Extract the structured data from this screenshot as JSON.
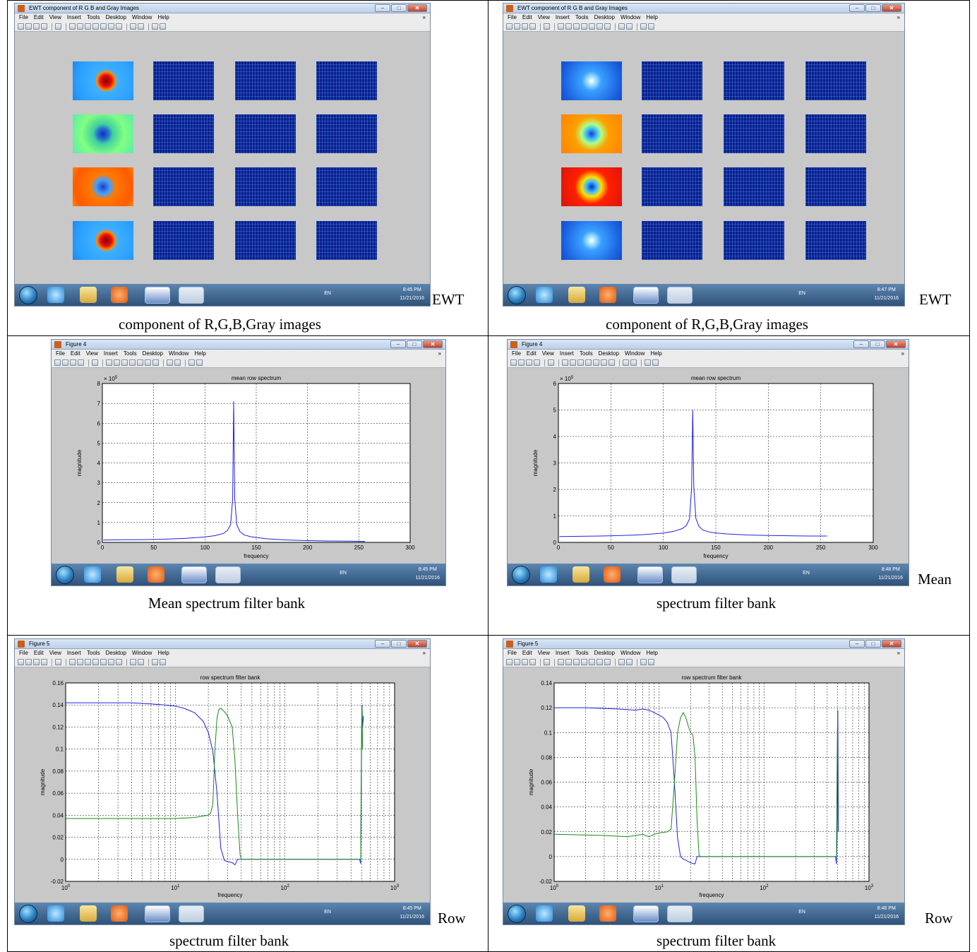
{
  "panels": [
    {
      "window": {
        "title": "EWT component of R G B and Gray Images"
      },
      "taskbar": {
        "time": "8:45 PM",
        "date": "11/21/2016",
        "lang": "EN"
      },
      "side_label": "EWT",
      "caption": "component of R,G,B,Gray images"
    },
    {
      "window": {
        "title": "EWT component of R G B and Gray Images"
      },
      "taskbar": {
        "time": "8:47 PM",
        "date": "11/21/2016",
        "lang": "EN"
      },
      "side_label": "EWT",
      "caption": "component of R,G,B,Gray images"
    },
    {
      "window": {
        "title": "Figure 4"
      },
      "taskbar": {
        "time": "8:45 PM",
        "date": "11/21/2016",
        "lang": "EN"
      },
      "side_label": "",
      "caption": "Mean spectrum filter bank"
    },
    {
      "window": {
        "title": "Figure 4"
      },
      "taskbar": {
        "time": "8:48 PM",
        "date": "11/21/2016",
        "lang": "EN"
      },
      "side_label": "Mean",
      "caption": "spectrum filter bank"
    },
    {
      "window": {
        "title": "Figure 5"
      },
      "taskbar": {
        "time": "8:45 PM",
        "date": "11/21/2016",
        "lang": "EN"
      },
      "side_label": "Row",
      "caption": "spectrum filter bank"
    },
    {
      "window": {
        "title": "Figure 5"
      },
      "taskbar": {
        "time": "8:48 PM",
        "date": "11/21/2016",
        "lang": "EN"
      },
      "side_label": "Row",
      "caption": "spectrum filter bank"
    }
  ],
  "menu": {
    "items": [
      "File",
      "Edit",
      "View",
      "Insert",
      "Tools",
      "Desktop",
      "Window",
      "Help"
    ],
    "overflow": "»"
  },
  "window_buttons": {
    "minimize": "–",
    "maximize": "□",
    "close": "✕"
  },
  "toolbar_icons": [
    "new-file-icon",
    "open-file-icon",
    "save-icon",
    "print-icon",
    "pointer-icon",
    "zoom-in-icon",
    "zoom-out-icon",
    "pan-icon",
    "rotate-icon",
    "data-cursor-icon",
    "brush-icon",
    "link-icon",
    "colorbar-icon",
    "legend-icon",
    "plot-tools-hide-icon",
    "plot-tools-show-icon"
  ],
  "taskbar_apps": [
    "start-orb-icon",
    "internet-explorer-icon",
    "file-explorer-icon",
    "media-player-icon",
    "word-icon",
    "matlab-icon"
  ],
  "colors": {
    "figure_bg": "#c8c8c8",
    "blue_line": "#2020e0",
    "green_line": "#1a8a1a",
    "taskbar": "#3f6790"
  },
  "chart_data": [
    {
      "type": "line",
      "title": "mean row spectrum",
      "xlabel": "frequency",
      "ylabel": "magnitude",
      "xlim": [
        0,
        300
      ],
      "ylim": [
        0,
        8
      ],
      "y_exponent": "× 10^5",
      "xticks": [
        0,
        50,
        100,
        150,
        200,
        250,
        300
      ],
      "yticks": [
        0,
        1,
        2,
        3,
        4,
        5,
        6,
        7,
        8
      ],
      "grid": true,
      "series": [
        {
          "x": [
            1,
            20,
            40,
            60,
            80,
            100,
            110,
            118,
            122,
            125,
            127,
            128,
            129,
            131,
            134,
            138,
            145,
            160,
            180,
            200,
            220,
            240,
            256
          ],
          "values": [
            0.12,
            0.13,
            0.14,
            0.16,
            0.2,
            0.27,
            0.34,
            0.45,
            0.6,
            0.9,
            2.2,
            7.1,
            2.2,
            0.9,
            0.55,
            0.38,
            0.28,
            0.18,
            0.12,
            0.09,
            0.07,
            0.06,
            0.05
          ]
        }
      ]
    },
    {
      "type": "line",
      "title": "mean row spectrum",
      "xlabel": "frequency",
      "ylabel": "magnitude",
      "xlim": [
        0,
        300
      ],
      "ylim": [
        0,
        6
      ],
      "y_exponent": "× 10^5",
      "xticks": [
        0,
        50,
        100,
        150,
        200,
        250,
        300
      ],
      "yticks": [
        0,
        1,
        2,
        3,
        4,
        5,
        6
      ],
      "grid": true,
      "series": [
        {
          "x": [
            1,
            20,
            40,
            60,
            80,
            100,
            110,
            118,
            122,
            125,
            127,
            128,
            129,
            131,
            134,
            138,
            145,
            160,
            180,
            200,
            220,
            240,
            256
          ],
          "values": [
            0.22,
            0.23,
            0.24,
            0.26,
            0.29,
            0.35,
            0.42,
            0.52,
            0.64,
            0.9,
            2.1,
            5.0,
            2.1,
            0.9,
            0.6,
            0.46,
            0.38,
            0.32,
            0.28,
            0.26,
            0.25,
            0.24,
            0.24
          ]
        }
      ]
    },
    {
      "type": "line",
      "title": "row spectrum filter bank",
      "xlabel": "frequency",
      "ylabel": "magnitude",
      "xscale": "log",
      "xlim": [
        1,
        1000
      ],
      "ylim": [
        -0.02,
        0.16
      ],
      "xticks": [
        "10^0",
        "10^1",
        "10^2",
        "10^3"
      ],
      "yticks": [
        -0.02,
        0,
        0.02,
        0.04,
        0.06,
        0.08,
        0.1,
        0.12,
        0.14,
        0.16
      ],
      "grid": true,
      "series": [
        {
          "x": [
            1,
            2,
            4,
            6,
            8,
            10,
            12,
            15,
            18,
            20,
            22,
            24,
            26,
            28,
            30,
            33,
            35,
            37,
            40,
            100,
            300,
            480,
            490,
            500,
            505,
            510,
            520
          ],
          "values": [
            0.142,
            0.142,
            0.142,
            0.141,
            0.14,
            0.139,
            0.137,
            0.133,
            0.125,
            0.115,
            0.098,
            0.06,
            0.01,
            -0.001,
            -0.002,
            -0.003,
            -0.005,
            0.0,
            0.0,
            0.0,
            0.0,
            0.0,
            -0.004,
            0.1,
            0.14,
            0.12,
            0.13
          ]
        },
        {
          "x": [
            1,
            5,
            10,
            15,
            20,
            21,
            22,
            23,
            24,
            25,
            26,
            28,
            30,
            33,
            35,
            37,
            39,
            40,
            41,
            100,
            300,
            480,
            490,
            500,
            505,
            510
          ],
          "values": [
            0.037,
            0.037,
            0.037,
            0.038,
            0.04,
            0.042,
            0.05,
            0.1,
            0.128,
            0.136,
            0.137,
            0.134,
            0.13,
            0.12,
            0.09,
            0.04,
            0.004,
            0.0,
            0.0,
            0.0,
            0.0,
            0.0,
            0.0,
            0.12,
            0.138,
            0.1
          ]
        }
      ]
    },
    {
      "type": "line",
      "title": "row spectrum filter bank",
      "xlabel": "frequency",
      "ylabel": "magnitude",
      "xscale": "log",
      "xlim": [
        1,
        1000
      ],
      "ylim": [
        -0.02,
        0.14
      ],
      "xticks": [
        "10^0",
        "10^1",
        "10^2",
        "10^3"
      ],
      "yticks": [
        -0.02,
        0,
        0.02,
        0.04,
        0.06,
        0.08,
        0.1,
        0.12,
        0.14
      ],
      "grid": true,
      "series": [
        {
          "x": [
            1,
            2,
            4,
            6,
            7,
            8,
            9,
            10,
            11,
            12,
            13,
            14,
            15,
            16,
            17,
            18,
            20,
            22,
            23,
            24,
            30,
            100,
            480,
            490,
            500,
            505,
            510
          ],
          "values": [
            0.12,
            0.12,
            0.119,
            0.118,
            0.119,
            0.118,
            0.116,
            0.114,
            0.112,
            0.108,
            0.1,
            0.06,
            0.015,
            0.0,
            -0.002,
            -0.003,
            -0.005,
            -0.006,
            0.0,
            0.0,
            0.0,
            0.0,
            0.0,
            -0.006,
            0.03,
            0.118,
            0.02
          ]
        },
        {
          "x": [
            1,
            3,
            5,
            6,
            7,
            8,
            9,
            10,
            12,
            13,
            14,
            15,
            16,
            17,
            18,
            19,
            20,
            21,
            22,
            23,
            24,
            25,
            100,
            480,
            490,
            500,
            505
          ],
          "values": [
            0.018,
            0.017,
            0.016,
            0.017,
            0.018,
            0.016,
            0.018,
            0.019,
            0.02,
            0.022,
            0.06,
            0.1,
            0.112,
            0.116,
            0.112,
            0.105,
            0.1,
            0.098,
            0.08,
            0.03,
            0.001,
            0.0,
            0.0,
            0.0,
            0.0,
            0.1,
            0.118
          ]
        }
      ]
    }
  ]
}
